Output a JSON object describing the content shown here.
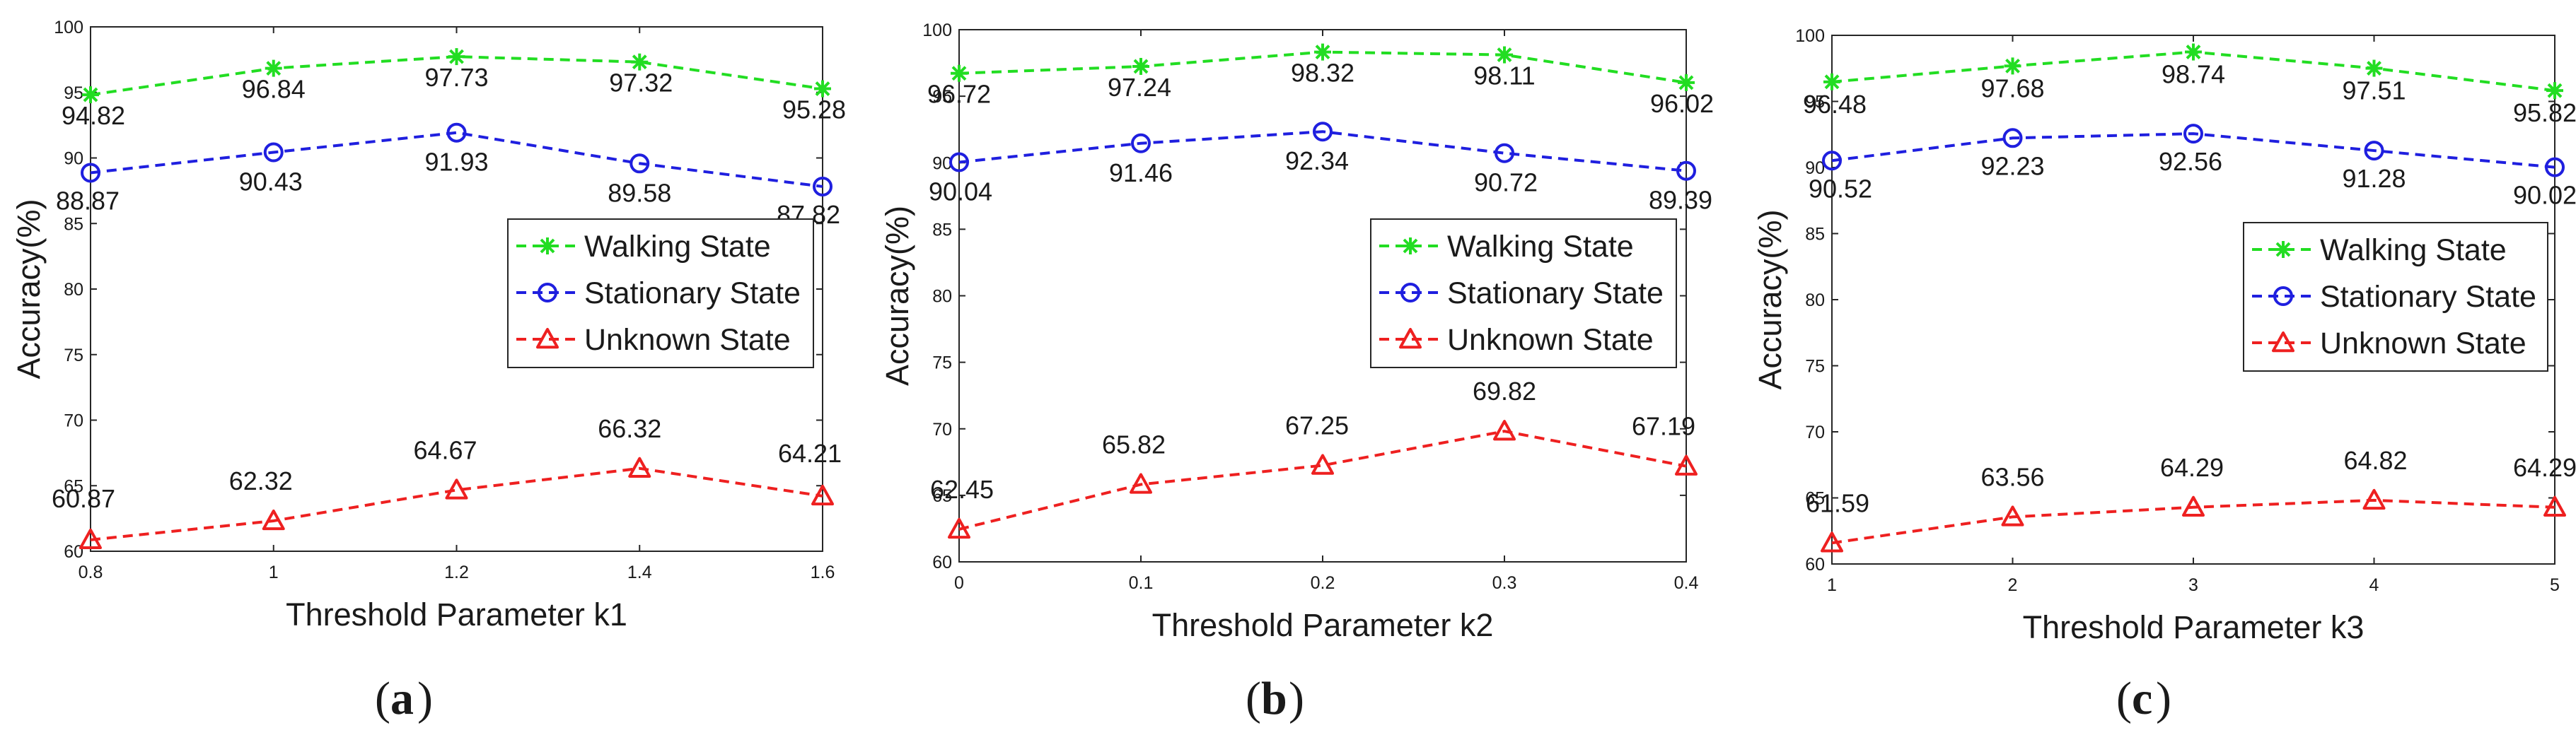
{
  "chart_data": [
    {
      "type": "line",
      "panel": "a",
      "xlabel": "Threshold Parameter k1",
      "ylabel": "Accuracy(%)",
      "x": [
        0.8,
        1,
        1.2,
        1.4,
        1.6
      ],
      "xticks": [
        "0.8",
        "1",
        "1.2",
        "1.4",
        "1.6"
      ],
      "xlim": [
        0.8,
        1.6
      ],
      "ylim": [
        60,
        100
      ],
      "yticks": [
        "60",
        "65",
        "70",
        "75",
        "80",
        "85",
        "90",
        "95",
        "100"
      ],
      "legend": "right",
      "series": [
        {
          "name": "Walking State",
          "color": "#22dd22",
          "marker": "star",
          "values": [
            94.82,
            96.84,
            97.73,
            97.32,
            95.28
          ],
          "labels": [
            "94.82",
            "96.84",
            "97.73",
            "97.32",
            "95.28"
          ]
        },
        {
          "name": "Stationary State",
          "color": "#1f1fdf",
          "marker": "circle",
          "values": [
            88.87,
            90.43,
            91.93,
            89.58,
            87.82
          ],
          "labels": [
            "88.87",
            "90.43",
            "91.93",
            "89.58",
            "87.82"
          ]
        },
        {
          "name": "Unknown State",
          "color": "#ee2020",
          "marker": "triangle",
          "values": [
            60.87,
            62.32,
            64.67,
            66.32,
            64.21
          ],
          "labels": [
            "60.87",
            "62.32",
            "64.67",
            "66.32",
            "64.21"
          ]
        }
      ]
    },
    {
      "type": "line",
      "panel": "b",
      "xlabel": "Threshold Parameter k2",
      "ylabel": "Accuracy(%)",
      "x": [
        0,
        0.1,
        0.2,
        0.3,
        0.4
      ],
      "xticks": [
        "0",
        "0.1",
        "0.2",
        "0.3",
        "0.4"
      ],
      "xlim": [
        0,
        0.4
      ],
      "ylim": [
        60,
        100
      ],
      "yticks": [
        "60",
        "65",
        "70",
        "75",
        "80",
        "85",
        "90",
        "95",
        "100"
      ],
      "legend": "right",
      "series": [
        {
          "name": "Walking State",
          "color": "#22dd22",
          "marker": "star",
          "values": [
            96.72,
            97.24,
            98.32,
            98.11,
            96.02
          ],
          "labels": [
            "96.72",
            "97.24",
            "98.32",
            "98.11",
            "96.02"
          ]
        },
        {
          "name": "Stationary State",
          "color": "#1f1fdf",
          "marker": "circle",
          "values": [
            90.04,
            91.46,
            92.34,
            90.72,
            89.39
          ],
          "labels": [
            "90.04",
            "91.46",
            "92.34",
            "90.72",
            "89.39"
          ]
        },
        {
          "name": "Unknown State",
          "color": "#ee2020",
          "marker": "triangle",
          "values": [
            62.45,
            65.82,
            67.25,
            69.82,
            67.19
          ],
          "labels": [
            "62.45",
            "65.82",
            "67.25",
            "69.82",
            "67.19"
          ]
        }
      ]
    },
    {
      "type": "line",
      "panel": "c",
      "xlabel": "Threshold Parameter k3",
      "ylabel": "Accuracy(%)",
      "x": [
        1,
        2,
        3,
        4,
        5
      ],
      "xticks": [
        "1",
        "2",
        "3",
        "4",
        "5"
      ],
      "xlim": [
        1,
        5
      ],
      "ylim": [
        60,
        100
      ],
      "yticks": [
        "60",
        "65",
        "70",
        "75",
        "80",
        "85",
        "90",
        "95",
        "100"
      ],
      "legend": "right",
      "series": [
        {
          "name": "Walking State",
          "color": "#22dd22",
          "marker": "star",
          "values": [
            96.48,
            97.68,
            98.74,
            97.51,
            95.82
          ],
          "labels": [
            "96.48",
            "97.68",
            "98.74",
            "97.51",
            "95.82"
          ]
        },
        {
          "name": "Stationary State",
          "color": "#1f1fdf",
          "marker": "circle",
          "values": [
            90.52,
            92.23,
            92.56,
            91.28,
            90.02
          ],
          "labels": [
            "90.52",
            "92.23",
            "92.56",
            "91.28",
            "90.02"
          ]
        },
        {
          "name": "Unknown State",
          "color": "#ee2020",
          "marker": "triangle",
          "values": [
            61.59,
            63.56,
            64.29,
            64.82,
            64.29
          ],
          "labels": [
            "61.59",
            "63.56",
            "64.29",
            "64.82",
            "64.29"
          ]
        }
      ]
    }
  ],
  "captions": {
    "a": {
      "open": "(",
      "letter": "a",
      "close": ")"
    },
    "b": {
      "open": "(",
      "letter": "b",
      "close": ")"
    },
    "c": {
      "open": "(",
      "letter": "c",
      "close": ")"
    }
  }
}
